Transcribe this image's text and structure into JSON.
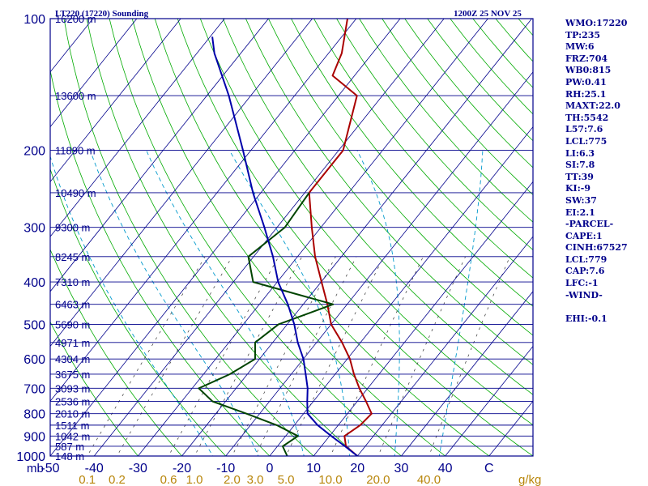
{
  "chart_data": {
    "type": "line",
    "chart_kind": "skew-T log-P sounding",
    "title_left": "LT220 (17220) Sounding",
    "title_right": "1200Z 25 NOV 25",
    "pressure_unit_label": "mb",
    "mixing_ratio_unit_label": "g/kg",
    "y_axis": {
      "label": "Pressure (mb)",
      "scale": "log",
      "range": [
        1000,
        100
      ],
      "tick_labels": [
        "100",
        "200",
        "300",
        "400",
        "500",
        "600",
        "700",
        "800",
        "900",
        "1000"
      ],
      "ticks": [
        100,
        200,
        300,
        400,
        500,
        600,
        700,
        800,
        900,
        1000
      ]
    },
    "x_axis": {
      "label": "Temperature (C)",
      "range": [
        -50,
        60
      ],
      "tick_labels": [
        "-50",
        "-40",
        "-30",
        "-20",
        "-10",
        "0",
        "10",
        "20",
        "30",
        "40",
        "C"
      ],
      "ticks": [
        -50,
        -40,
        -30,
        -20,
        -10,
        0,
        10,
        20,
        30,
        40,
        50
      ]
    },
    "mixing_ratio_labels": [
      "0.1",
      "0.2",
      "0.6",
      "1.0",
      "2.0",
      "3.0",
      "5.0",
      "10.0",
      "20.0",
      "40.0"
    ],
    "mixing_ratio_values": [
      0.1,
      0.2,
      0.6,
      1.0,
      2.0,
      3.0,
      5.0,
      10.0,
      20.0,
      40.0
    ],
    "height_levels": [
      {
        "p": 100,
        "label": "16200 m"
      },
      {
        "p": 150,
        "label": "13600 m"
      },
      {
        "p": 200,
        "label": "11890 m"
      },
      {
        "p": 250,
        "label": "10490 m"
      },
      {
        "p": 300,
        "label": "9300 m"
      },
      {
        "p": 350,
        "label": "8245 m"
      },
      {
        "p": 400,
        "label": "7310 m"
      },
      {
        "p": 450,
        "label": "6463 m"
      },
      {
        "p": 500,
        "label": "5690 m"
      },
      {
        "p": 550,
        "label": "4971 m"
      },
      {
        "p": 600,
        "label": "4304 m"
      },
      {
        "p": 650,
        "label": "3675 m"
      },
      {
        "p": 700,
        "label": "3093 m"
      },
      {
        "p": 750,
        "label": "2536 m"
      },
      {
        "p": 800,
        "label": "2010 m"
      },
      {
        "p": 850,
        "label": "1511 m"
      },
      {
        "p": 900,
        "label": "1042 m"
      },
      {
        "p": 950,
        "label": "587 m"
      },
      {
        "p": 1000,
        "label": "148 m"
      }
    ],
    "series": [
      {
        "name": "Temperature",
        "color": "#aa0000",
        "points": [
          {
            "p": 1000,
            "t": 20.0
          },
          {
            "p": 950,
            "t": 15.6
          },
          {
            "p": 900,
            "t": 13.4
          },
          {
            "p": 850,
            "t": 15.0
          },
          {
            "p": 800,
            "t": 15.5
          },
          {
            "p": 750,
            "t": 12.0
          },
          {
            "p": 700,
            "t": 8.1
          },
          {
            "p": 650,
            "t": 4.3
          },
          {
            "p": 600,
            "t": 0.6
          },
          {
            "p": 550,
            "t": -4.2
          },
          {
            "p": 500,
            "t": -10.0
          },
          {
            "p": 450,
            "t": -14.5
          },
          {
            "p": 400,
            "t": -19.9
          },
          {
            "p": 350,
            "t": -26.0
          },
          {
            "p": 300,
            "t": -32.1
          },
          {
            "p": 250,
            "t": -39.0
          },
          {
            "p": 200,
            "t": -39.0
          },
          {
            "p": 150,
            "t": -45.8
          },
          {
            "p": 135,
            "t": -55.0
          },
          {
            "p": 120,
            "t": -57.0
          },
          {
            "p": 100,
            "t": -62.0
          }
        ]
      },
      {
        "name": "Dewpoint",
        "color": "#004400",
        "points": [
          {
            "p": 1000,
            "t": 4.0
          },
          {
            "p": 950,
            "t": 1.2
          },
          {
            "p": 900,
            "t": 2.8
          },
          {
            "p": 850,
            "t": -4.0
          },
          {
            "p": 800,
            "t": -13.0
          },
          {
            "p": 750,
            "t": -23.0
          },
          {
            "p": 700,
            "t": -28.5
          },
          {
            "p": 650,
            "t": -24.0
          },
          {
            "p": 600,
            "t": -21.0
          },
          {
            "p": 550,
            "t": -24.0
          },
          {
            "p": 500,
            "t": -22.0
          },
          {
            "p": 450,
            "t": -13.2
          },
          {
            "p": 400,
            "t": -35.5
          },
          {
            "p": 350,
            "t": -41.2
          },
          {
            "p": 300,
            "t": -38.2
          },
          {
            "p": 250,
            "t": -39.0
          }
        ]
      },
      {
        "name": "Parcel",
        "color": "#0000aa",
        "points": [
          {
            "p": 1000,
            "t": 20.0
          },
          {
            "p": 950,
            "t": 15.4
          },
          {
            "p": 900,
            "t": 10.4
          },
          {
            "p": 850,
            "t": 5.3
          },
          {
            "p": 800,
            "t": 0.9
          },
          {
            "p": 750,
            "t": -1.4
          },
          {
            "p": 700,
            "t": -3.7
          },
          {
            "p": 650,
            "t": -6.7
          },
          {
            "p": 600,
            "t": -10.0
          },
          {
            "p": 550,
            "t": -14.3
          },
          {
            "p": 500,
            "t": -18.4
          },
          {
            "p": 450,
            "t": -23.5
          },
          {
            "p": 400,
            "t": -29.8
          },
          {
            "p": 350,
            "t": -35.6
          },
          {
            "p": 300,
            "t": -42.9
          },
          {
            "p": 250,
            "t": -51.8
          },
          {
            "p": 200,
            "t": -61.8
          },
          {
            "p": 150,
            "t": -75.0
          },
          {
            "p": 120,
            "t": -86.0
          },
          {
            "p": 110,
            "t": -89.5
          }
        ]
      }
    ]
  },
  "indices": [
    "WMO:17220",
    "TP:235",
    "MW:6",
    "FRZ:704",
    "WB0:815",
    "PW:0.41",
    "RH:25.1",
    "MAXT:22.0",
    "TH:5542",
    "L57:7.6",
    "LCL:775",
    "LI:6.3",
    "SI:7.8",
    "TT:39",
    "KI:-9",
    "SW:37",
    "EI:2.1",
    "-PARCEL-",
    "CAPE:1",
    "CINH:67527",
    "LCL:779",
    "CAP:7.6",
    "LFC:-1",
    "-WIND-",
    "",
    "EHI:-0.1"
  ],
  "colors": {
    "background": "#ffffff",
    "frame": "#00008b",
    "isobar": "#00008b",
    "isotherm": "#00008b",
    "dry_adiabat": "#00aa00",
    "moist_adiabat": "#0099cc",
    "mixing_ratio": "#333333",
    "label_gold": "#b8860b",
    "text_blue": "#00008b"
  }
}
